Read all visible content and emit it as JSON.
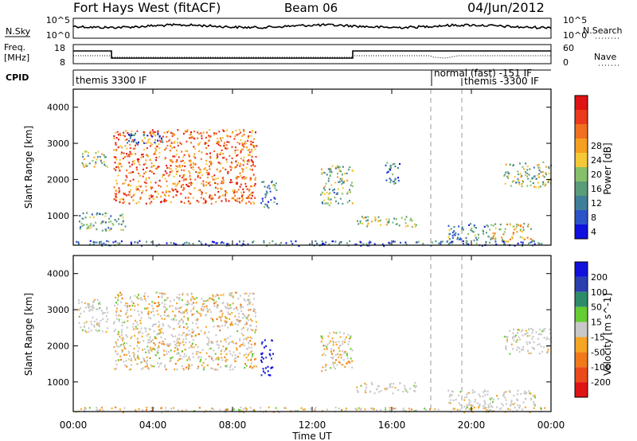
{
  "header": {
    "title": "Fort Hays West (fitACF)",
    "beam": "Beam 06",
    "date": "04/Jun/2012"
  },
  "sky_panel": {
    "left_label": "N.Sky",
    "right_label": "N.Search",
    "left_ticks": [
      "10^5",
      "10^0"
    ],
    "right_ticks": [
      "10^5",
      "10^0"
    ]
  },
  "freq_panel": {
    "left_label_top": "Freq.",
    "left_label_unit": "[MHz]",
    "right_label": "Nave",
    "left_ticks": [
      "18",
      "8"
    ],
    "right_ticks": [
      "60",
      "0"
    ]
  },
  "cpid_panel": {
    "label": "CPID",
    "modes": [
      "themis 3300 IF",
      "normal (fast) -151 IF",
      "themis -3300 IF"
    ]
  },
  "time_axis": {
    "label": "Time UT",
    "ticks": [
      "00:00",
      "04:00",
      "08:00",
      "12:00",
      "16:00",
      "20:00",
      "00:00"
    ]
  },
  "chart_data": [
    {
      "type": "heatmap",
      "name": "power",
      "ylabel": "Slant Range [km]",
      "xlabel": "Time UT",
      "xlim_hours": [
        0,
        24
      ],
      "ylim_km": [
        180,
        4500
      ],
      "y_ticks": [
        "1000",
        "2000",
        "3000",
        "4000"
      ],
      "colorbar_label": "Power [dB]",
      "colorbar_ticks": [
        "4",
        "8",
        "12",
        "16",
        "20",
        "24",
        "28"
      ],
      "colorbar_colors": [
        "#1010e0",
        "#2b54c8",
        "#3f7f9a",
        "#5a9c7a",
        "#86c06a",
        "#f5c838",
        "#f5a020",
        "#f07020",
        "#ec3a1c",
        "#e01414"
      ],
      "echo_regions": [
        {
          "t0": 0.4,
          "t1": 1.8,
          "r0": 2350,
          "r1": 2800,
          "level": 0.45
        },
        {
          "t0": 2.0,
          "t1": 9.2,
          "r0": 1350,
          "r1": 3400,
          "level": 0.75
        },
        {
          "t0": 0.2,
          "t1": 2.6,
          "r0": 600,
          "r1": 1100,
          "level": 0.35
        },
        {
          "t0": 2.5,
          "t1": 4.5,
          "r0": 3000,
          "r1": 3300,
          "level": 0.2
        },
        {
          "t0": 9.4,
          "t1": 10.2,
          "r0": 1200,
          "r1": 2000,
          "level": 0.3
        },
        {
          "t0": 12.4,
          "t1": 14.0,
          "r0": 1300,
          "r1": 2400,
          "level": 0.4
        },
        {
          "t0": 14.2,
          "t1": 17.2,
          "r0": 700,
          "r1": 1000,
          "level": 0.45
        },
        {
          "t0": 15.6,
          "t1": 16.4,
          "r0": 1900,
          "r1": 2500,
          "level": 0.25
        },
        {
          "t0": 18.8,
          "t1": 21.0,
          "r0": 300,
          "r1": 800,
          "level": 0.3
        },
        {
          "t0": 21.0,
          "t1": 23.2,
          "r0": 300,
          "r1": 800,
          "level": 0.55
        },
        {
          "t0": 21.6,
          "t1": 24.0,
          "r0": 1800,
          "r1": 2500,
          "level": 0.45
        },
        {
          "t0": 0.0,
          "t1": 24.0,
          "r0": 180,
          "r1": 320,
          "level": 0.2
        }
      ]
    },
    {
      "type": "heatmap",
      "name": "velocity",
      "ylabel": "Slant Range [km]",
      "xlabel": "Time UT",
      "xlim_hours": [
        0,
        24
      ],
      "ylim_km": [
        180,
        4500
      ],
      "y_ticks": [
        "1000",
        "2000",
        "3000",
        "4000"
      ],
      "colorbar_label": "Velocity [m s^-1]",
      "colorbar_ticks": [
        "200",
        "100",
        "50",
        "15",
        "-15",
        "-50",
        "-100",
        "-200"
      ],
      "colorbar_colors": [
        "#1111dd",
        "#2b3fae",
        "#2e8c6a",
        "#66cc33",
        "#c8c8c8",
        "#f5a623",
        "#f07a1a",
        "#ec4a1a",
        "#e01414"
      ],
      "echo_regions": [
        {
          "t0": 0.2,
          "t1": 1.8,
          "r0": 2400,
          "r1": 3300,
          "level": "gray"
        },
        {
          "t0": 2.0,
          "t1": 9.2,
          "r0": 1350,
          "r1": 3500,
          "level": "mixed"
        },
        {
          "t0": 9.4,
          "t1": 10.0,
          "r0": 1200,
          "r1": 2200,
          "level": "blue"
        },
        {
          "t0": 12.4,
          "t1": 14.0,
          "r0": 1300,
          "r1": 2400,
          "level": "mixed"
        },
        {
          "t0": 14.2,
          "t1": 17.2,
          "r0": 700,
          "r1": 1000,
          "level": "gray"
        },
        {
          "t0": 18.8,
          "t1": 23.2,
          "r0": 300,
          "r1": 800,
          "level": "gray"
        },
        {
          "t0": 21.6,
          "t1": 24.0,
          "r0": 1800,
          "r1": 2500,
          "level": "gray"
        },
        {
          "t0": 0.0,
          "t1": 24.0,
          "r0": 180,
          "r1": 320,
          "level": "mixed"
        }
      ]
    }
  ]
}
